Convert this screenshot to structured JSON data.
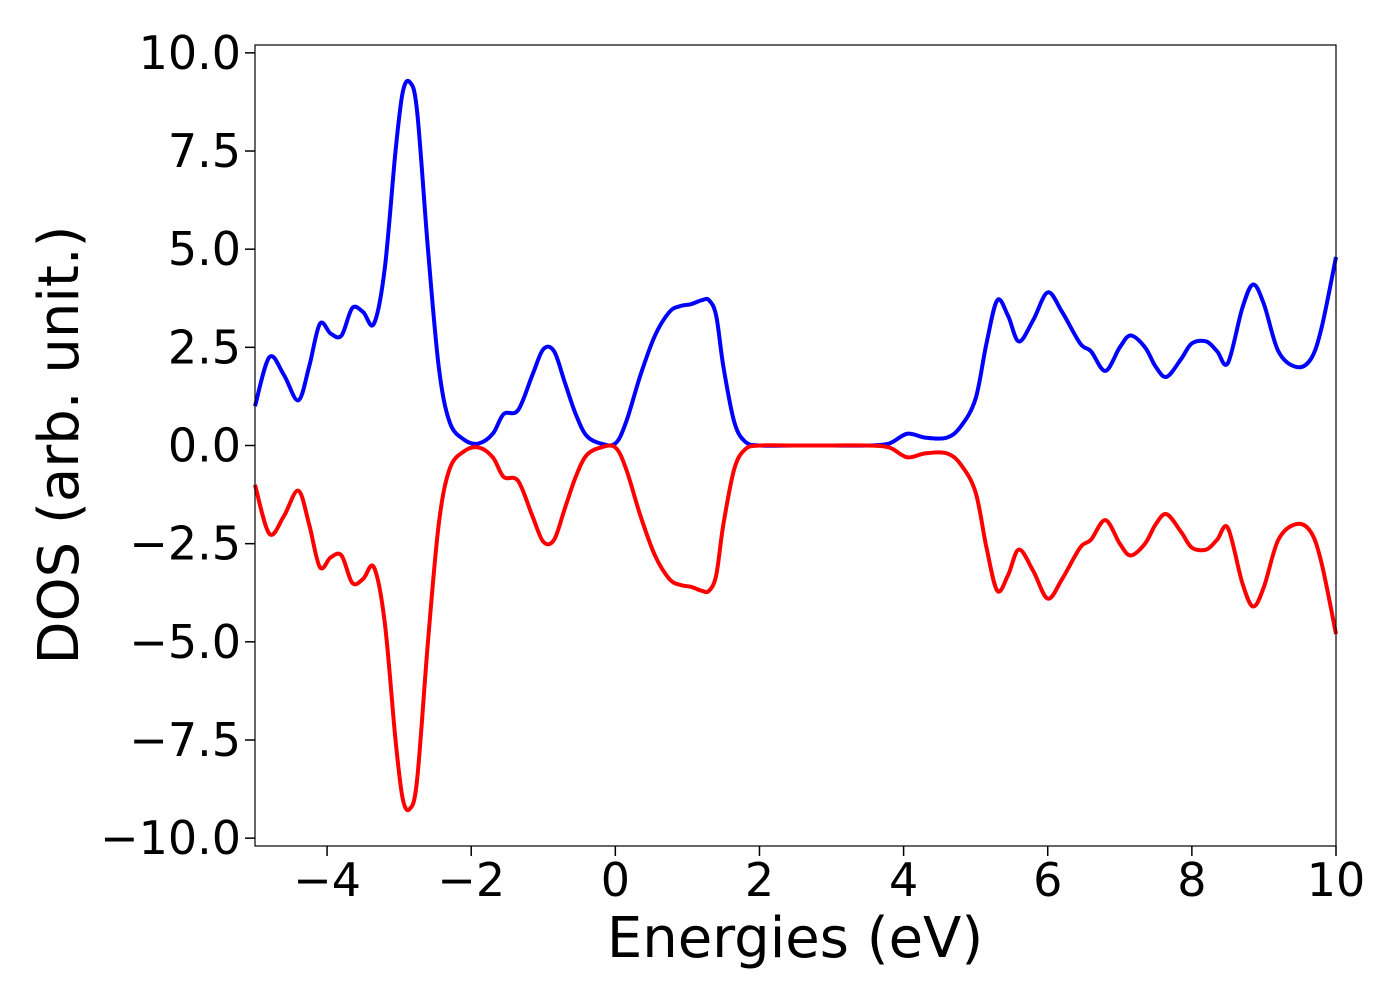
{
  "chart_data": {
    "type": "line",
    "xlabel": "Energies (eV)",
    "ylabel": "DOS (arb. unit.)",
    "xlim": [
      -5,
      10
    ],
    "ylim": [
      -10.2,
      10.2
    ],
    "xticks": [
      -4,
      -2,
      0,
      2,
      4,
      6,
      8,
      10
    ],
    "xtick_labels": [
      "−4",
      "−2",
      "0",
      "2",
      "4",
      "6",
      "8",
      "10"
    ],
    "yticks": [
      10,
      7.5,
      5,
      2.5,
      0,
      -2.5,
      -5,
      -7.5,
      -10
    ],
    "ytick_labels": [
      "10.0",
      "7.5",
      "5.0",
      "2.5",
      "0.0",
      "−2.5",
      "−5.0",
      "−7.5",
      "−10.0"
    ],
    "grid": false,
    "legend": "none",
    "series": [
      {
        "color": "#0000ff",
        "x": [
          -5.0,
          -4.8,
          -4.6,
          -4.4,
          -4.25,
          -4.1,
          -3.95,
          -3.8,
          -3.65,
          -3.5,
          -3.35,
          -3.2,
          -3.05,
          -2.95,
          -2.85,
          -2.75,
          -2.6,
          -2.45,
          -2.3,
          -2.1,
          -1.9,
          -1.7,
          -1.55,
          -1.35,
          -1.15,
          -1.0,
          -0.85,
          -0.7,
          -0.55,
          -0.4,
          -0.2,
          0.0,
          0.15,
          0.35,
          0.55,
          0.75,
          0.9,
          1.05,
          1.2,
          1.3,
          1.4,
          1.5,
          1.65,
          1.8,
          2.0,
          2.5,
          3.0,
          3.5,
          3.8,
          4.05,
          4.3,
          4.6,
          4.8,
          5.0,
          5.15,
          5.3,
          5.45,
          5.6,
          5.8,
          6.0,
          6.2,
          6.45,
          6.6,
          6.8,
          7.0,
          7.15,
          7.35,
          7.5,
          7.65,
          7.85,
          8.0,
          8.2,
          8.35,
          8.5,
          8.7,
          8.85,
          9.0,
          9.2,
          9.45,
          9.65,
          9.8,
          10.0
        ],
        "y": [
          1.0,
          2.25,
          1.8,
          1.15,
          2.0,
          3.1,
          2.85,
          2.8,
          3.5,
          3.4,
          3.1,
          4.5,
          7.5,
          9.0,
          9.25,
          8.5,
          5.0,
          2.0,
          0.6,
          0.15,
          0.05,
          0.3,
          0.8,
          0.9,
          1.8,
          2.45,
          2.4,
          1.6,
          0.8,
          0.25,
          0.05,
          0.05,
          0.6,
          1.8,
          2.8,
          3.4,
          3.55,
          3.6,
          3.7,
          3.7,
          3.3,
          2.0,
          0.6,
          0.1,
          0.0,
          0.0,
          0.0,
          0.0,
          0.05,
          0.3,
          0.2,
          0.2,
          0.5,
          1.2,
          2.6,
          3.7,
          3.3,
          2.65,
          3.2,
          3.9,
          3.4,
          2.6,
          2.4,
          1.9,
          2.5,
          2.8,
          2.5,
          2.0,
          1.75,
          2.2,
          2.6,
          2.65,
          2.4,
          2.1,
          3.5,
          4.1,
          3.6,
          2.4,
          2.0,
          2.2,
          3.0,
          4.8
        ]
      },
      {
        "color": "#ff0000",
        "x": [
          -5.0,
          -4.8,
          -4.6,
          -4.4,
          -4.25,
          -4.1,
          -3.95,
          -3.8,
          -3.65,
          -3.5,
          -3.35,
          -3.2,
          -3.05,
          -2.95,
          -2.85,
          -2.75,
          -2.6,
          -2.45,
          -2.3,
          -2.1,
          -1.9,
          -1.7,
          -1.55,
          -1.35,
          -1.15,
          -1.0,
          -0.85,
          -0.7,
          -0.55,
          -0.4,
          -0.2,
          0.0,
          0.15,
          0.35,
          0.55,
          0.75,
          0.9,
          1.05,
          1.2,
          1.3,
          1.4,
          1.5,
          1.65,
          1.8,
          2.0,
          2.5,
          3.0,
          3.5,
          3.8,
          4.05,
          4.3,
          4.6,
          4.8,
          5.0,
          5.15,
          5.3,
          5.45,
          5.6,
          5.8,
          6.0,
          6.2,
          6.45,
          6.6,
          6.8,
          7.0,
          7.15,
          7.35,
          7.5,
          7.65,
          7.85,
          8.0,
          8.2,
          8.35,
          8.5,
          8.7,
          8.85,
          9.0,
          9.2,
          9.45,
          9.65,
          9.8,
          10.0
        ],
        "y": [
          -1.0,
          -2.25,
          -1.8,
          -1.15,
          -2.0,
          -3.1,
          -2.85,
          -2.8,
          -3.5,
          -3.4,
          -3.1,
          -4.5,
          -7.5,
          -9.0,
          -9.25,
          -8.5,
          -5.0,
          -2.0,
          -0.6,
          -0.15,
          -0.05,
          -0.3,
          -0.8,
          -0.9,
          -1.8,
          -2.45,
          -2.4,
          -1.6,
          -0.8,
          -0.25,
          -0.05,
          -0.05,
          -0.6,
          -1.8,
          -2.8,
          -3.4,
          -3.55,
          -3.6,
          -3.7,
          -3.7,
          -3.3,
          -2.0,
          -0.6,
          -0.1,
          0.0,
          0.0,
          0.0,
          0.0,
          -0.05,
          -0.3,
          -0.2,
          -0.2,
          -0.5,
          -1.2,
          -2.6,
          -3.7,
          -3.3,
          -2.65,
          -3.2,
          -3.9,
          -3.4,
          -2.6,
          -2.4,
          -1.9,
          -2.5,
          -2.8,
          -2.5,
          -2.0,
          -1.75,
          -2.2,
          -2.6,
          -2.65,
          -2.4,
          -2.1,
          -3.5,
          -4.1,
          -3.6,
          -2.4,
          -2.0,
          -2.2,
          -3.0,
          -4.8
        ]
      }
    ]
  }
}
